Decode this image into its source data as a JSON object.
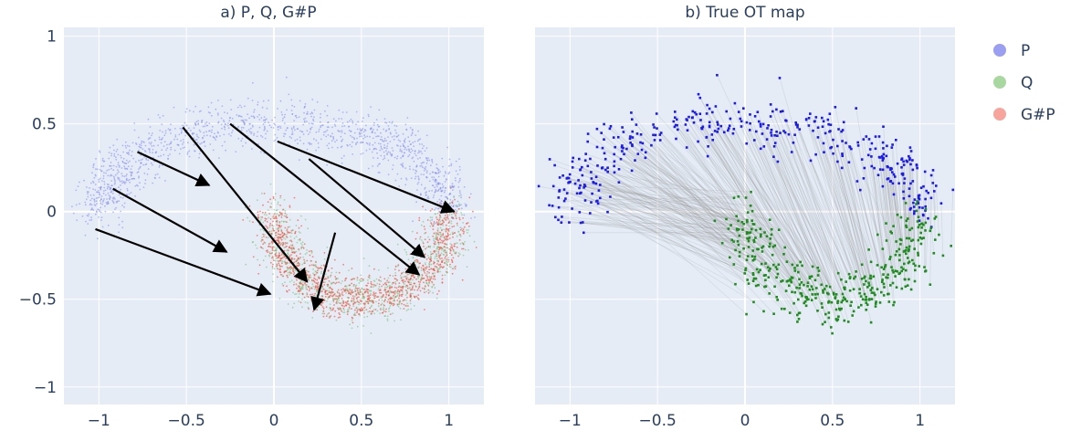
{
  "legend": [
    {
      "label": "P",
      "color": "#9b9ff2"
    },
    {
      "label": "Q",
      "color": "#a8d8a0"
    },
    {
      "label": "G#P",
      "color": "#f7a59c"
    }
  ],
  "colors": {
    "plot_bg": "#e5ecf6",
    "grid": "#ffffff",
    "p_light": "#8088f0",
    "q_light": "#6fbf6f",
    "gp_light": "#ef5a4a",
    "p_strong": "#1a1aee",
    "q_strong": "#1e8c1e",
    "ot_lines": "#888888",
    "arrow": "#000000"
  },
  "chart_data": [
    {
      "type": "scatter",
      "title": "a) P, Q, G#P",
      "xlim": [
        -1.2,
        1.2
      ],
      "ylim": [
        -1.1,
        1.05
      ],
      "xticks": [
        -1,
        -0.5,
        0,
        0.5,
        1
      ],
      "xtick_labels": [
        "−1",
        "−0.5",
        "0",
        "0.5",
        "1"
      ],
      "yticks": [
        -1,
        -0.5,
        0,
        0.5,
        1
      ],
      "ytick_labels": [
        "−1",
        "−0.5",
        "0",
        "0.5",
        "1"
      ],
      "grid": true,
      "series": [
        {
          "name": "P",
          "shape": "upper moon",
          "center": [
            0,
            0
          ],
          "radius": 1.0,
          "angle_range_deg": [
            0,
            180
          ],
          "noise": 0.07
        },
        {
          "name": "Q",
          "shape": "lower moon",
          "center": [
            0.5,
            0.0
          ],
          "radius": 0.5,
          "y_scale": 1.0,
          "angle_range_deg": [
            -180,
            0
          ],
          "noise": 0.07
        },
        {
          "name": "G#P",
          "shape": "lower moon",
          "center": [
            0.5,
            0.0
          ],
          "radius": 0.5,
          "angle_range_deg": [
            -180,
            0
          ],
          "noise": 0.06
        }
      ],
      "arrows": [
        {
          "from": [
            -1.02,
            -0.1
          ],
          "to": [
            -0.02,
            -0.47
          ]
        },
        {
          "from": [
            -0.92,
            0.13
          ],
          "to": [
            -0.27,
            -0.23
          ]
        },
        {
          "from": [
            -0.78,
            0.34
          ],
          "to": [
            -0.37,
            0.15
          ]
        },
        {
          "from": [
            -0.52,
            0.48
          ],
          "to": [
            0.19,
            -0.4
          ]
        },
        {
          "from": [
            0.35,
            -0.12
          ],
          "to": [
            0.23,
            -0.56
          ]
        },
        {
          "from": [
            -0.25,
            0.5
          ],
          "to": [
            0.83,
            -0.36
          ]
        },
        {
          "from": [
            0.2,
            0.3
          ],
          "to": [
            0.86,
            -0.26
          ]
        },
        {
          "from": [
            0.02,
            0.4
          ],
          "to": [
            1.03,
            0.0
          ]
        }
      ]
    },
    {
      "type": "scatter",
      "title": "b) True OT map",
      "xlim": [
        -1.2,
        1.2
      ],
      "ylim": [
        -1.1,
        1.05
      ],
      "xticks": [
        -1,
        -0.5,
        0,
        0.5,
        1
      ],
      "xtick_labels": [
        "−1",
        "−0.5",
        "0",
        "0.5",
        "1"
      ],
      "grid": true,
      "series": [
        {
          "name": "P",
          "shape": "upper moon",
          "center": [
            0,
            0
          ],
          "radius": 1.0,
          "angle_range_deg": [
            0,
            180
          ],
          "noise": 0.08
        },
        {
          "name": "Q",
          "shape": "lower moon",
          "center": [
            0.5,
            0.0
          ],
          "radius": 0.5,
          "angle_range_deg": [
            -180,
            0
          ],
          "noise": 0.08
        }
      ],
      "ot_lines": "P_i to Q_i"
    }
  ]
}
